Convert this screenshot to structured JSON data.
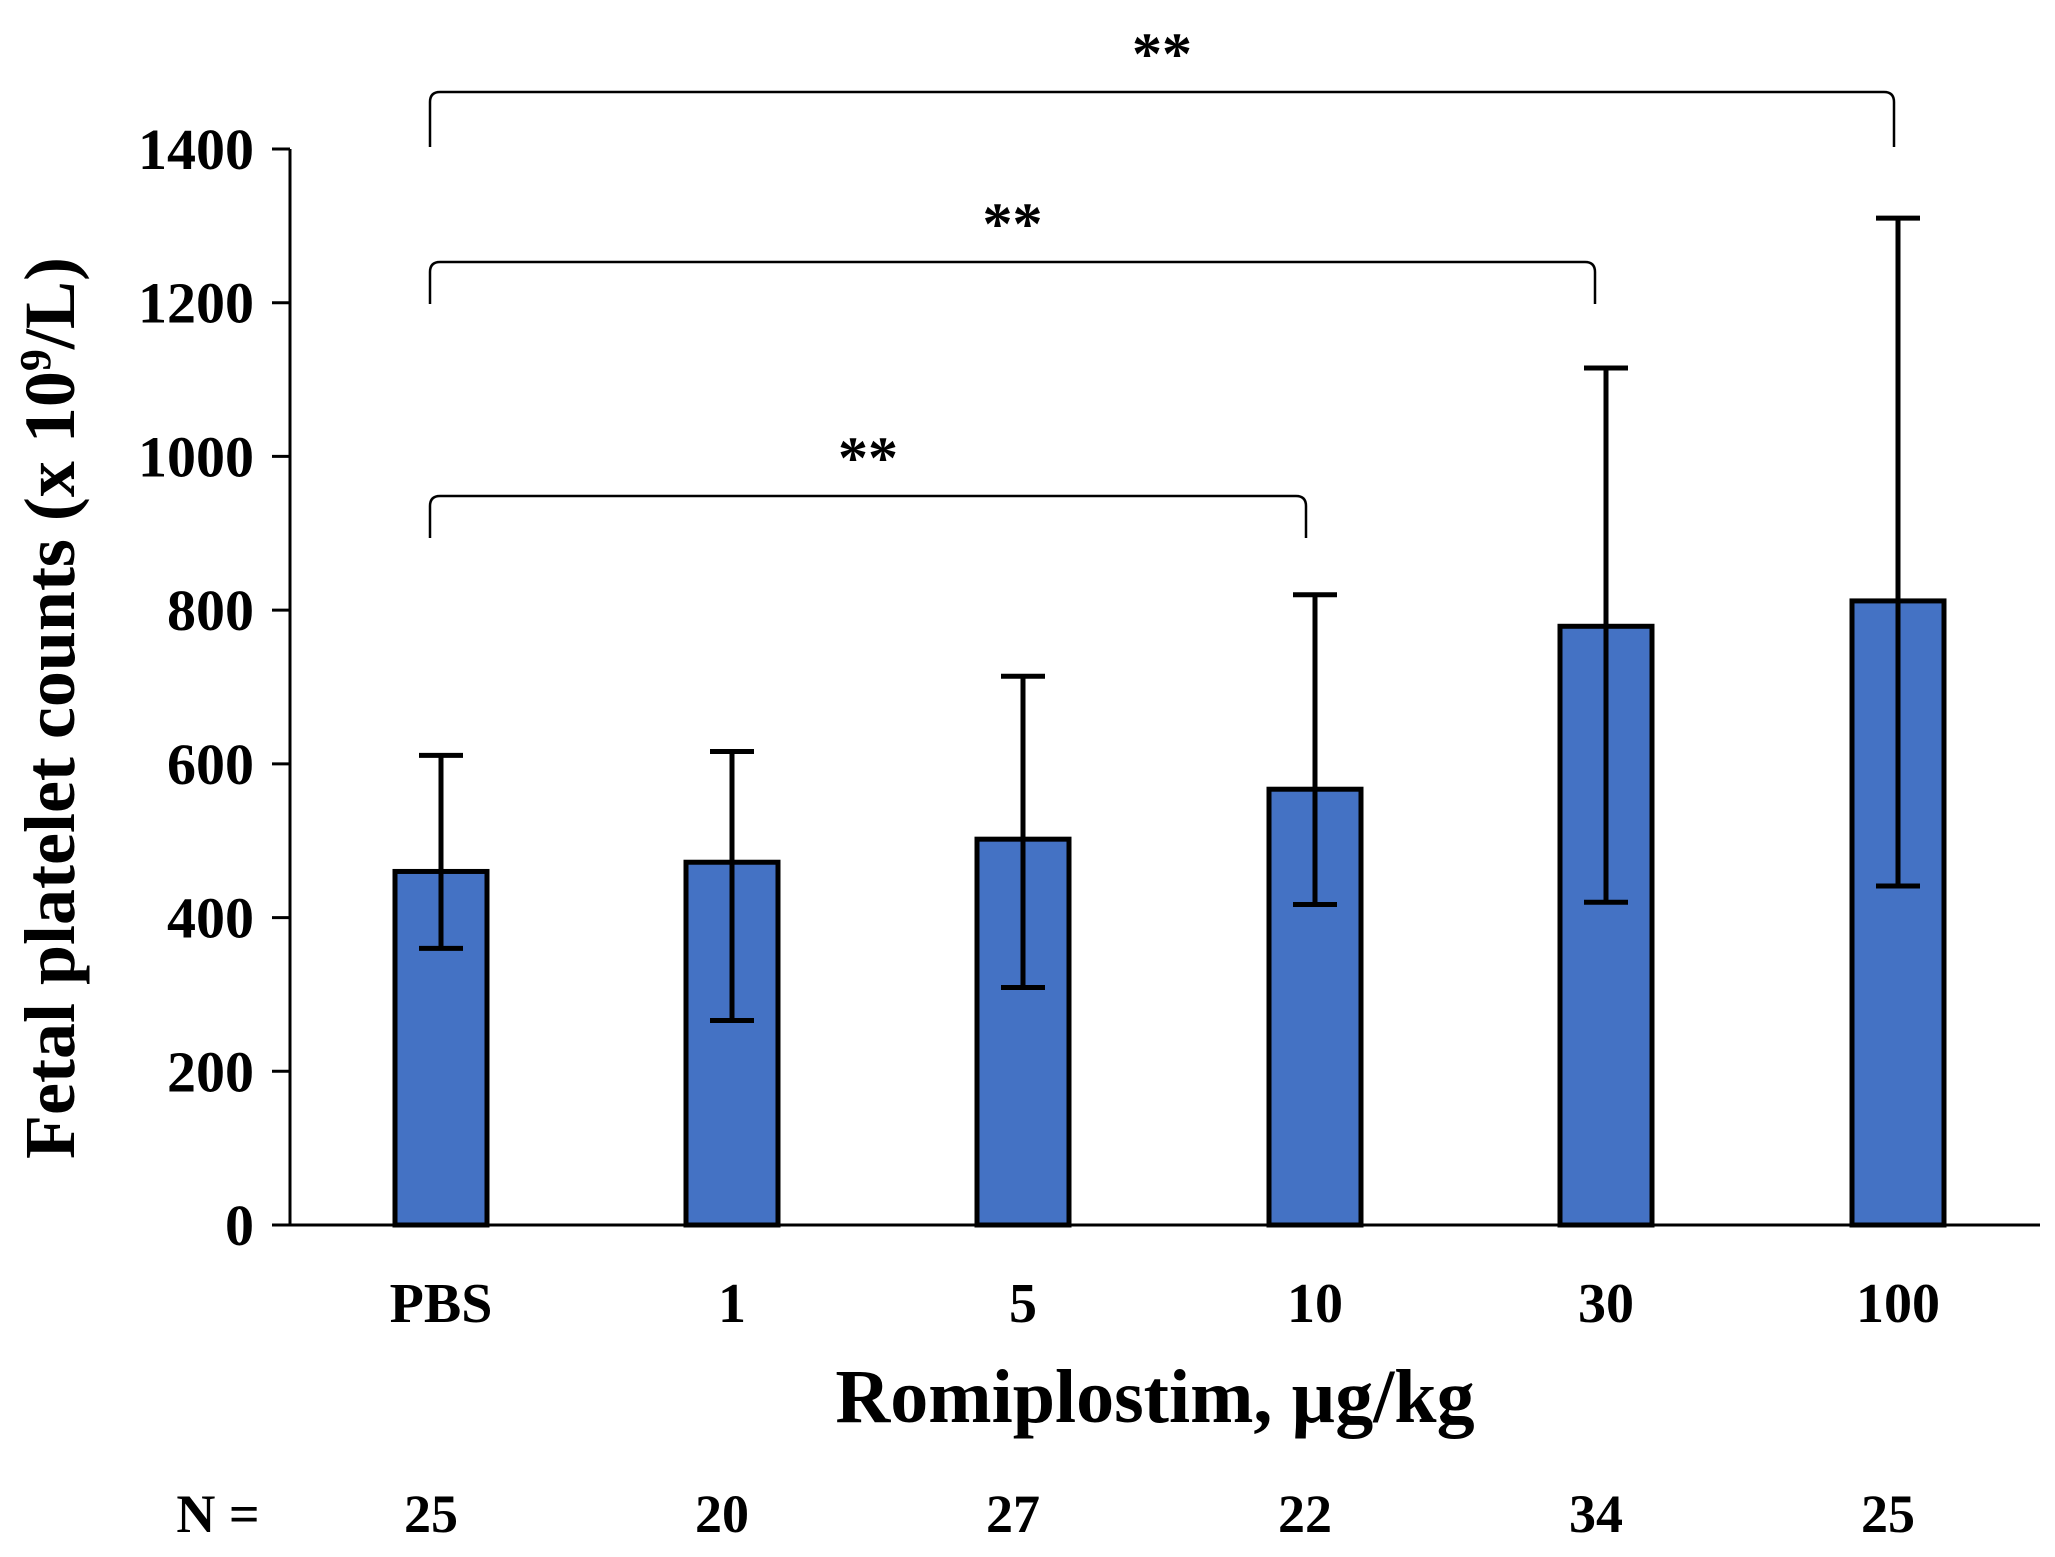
{
  "chart_data": {
    "type": "bar",
    "title": "",
    "xlabel": "Romiplostim, µg/kg",
    "ylabel_main": "Fetal platelet counts (x 10",
    "ylabel_sup": "9",
    "ylabel_tail": "/L)",
    "categories": [
      "PBS",
      "1",
      "5",
      "10",
      "30",
      "100"
    ],
    "values": [
      460,
      472,
      502,
      567,
      779,
      812
    ],
    "error_low": [
      360,
      266,
      309,
      417,
      420,
      441
    ],
    "error_high": [
      611,
      616,
      714,
      820,
      1115,
      1310
    ],
    "ylim": [
      0,
      1400
    ],
    "yticks": [
      0,
      200,
      400,
      600,
      800,
      1000,
      1200,
      1400
    ],
    "bar_color": "#4472c4",
    "n_label": "N =",
    "n_values": [
      "25",
      "20",
      "27",
      "22",
      "34",
      "25"
    ],
    "significance": [
      {
        "from": 0,
        "to": 5,
        "label": "**"
      },
      {
        "from": 0,
        "to": 4,
        "label": "**"
      },
      {
        "from": 0,
        "to": 3,
        "label": "**"
      }
    ]
  }
}
